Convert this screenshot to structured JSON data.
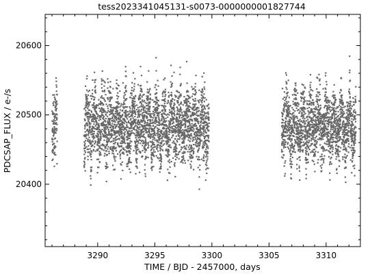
{
  "chart_data": {
    "type": "scatter",
    "title": "tess2023341045131-s0073-0000000001827744",
    "xlabel": "TIME / BJD - 2457000, days",
    "ylabel": "PDCSAP_FLUX / e-/s",
    "xlim": [
      3285.4,
      3313.0
    ],
    "ylim": [
      20310,
      20645
    ],
    "x_ticks": [
      3290,
      3295,
      3300,
      3305,
      3310
    ],
    "x_tick_labels": [
      "3290",
      "3295",
      "3300",
      "3305",
      "3310"
    ],
    "y_ticks": [
      20400,
      20500,
      20600
    ],
    "y_tick_labels": [
      "20400",
      "20500",
      "20600"
    ],
    "marker_color": "#666666",
    "series": [
      {
        "name": "PDCSAP_FLUX",
        "segments": [
          {
            "t_start": 3286.0,
            "t_end": 3286.45,
            "center": 20480,
            "spread": 55
          },
          {
            "t_start": 3288.8,
            "t_end": 3299.75,
            "center": 20485,
            "spread": 60
          },
          {
            "t_start": 3306.1,
            "t_end": 3312.6,
            "center": 20485,
            "spread": 55
          }
        ]
      }
    ]
  }
}
